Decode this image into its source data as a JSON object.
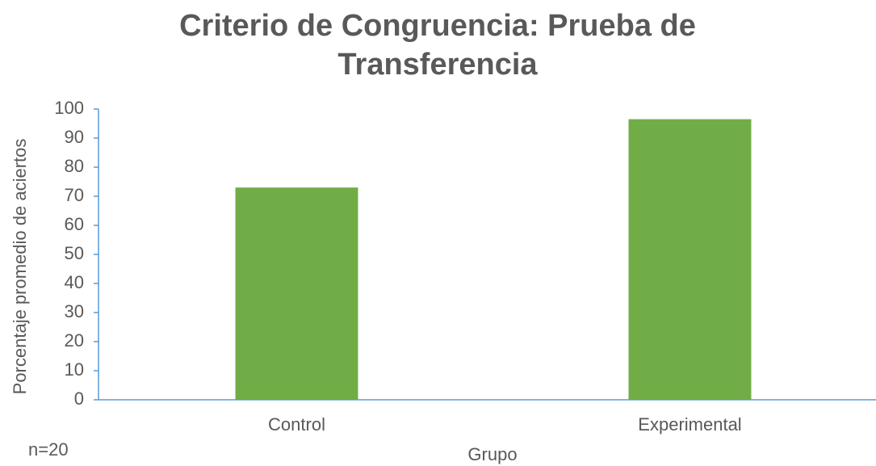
{
  "chart_data": {
    "type": "bar",
    "title": "Criterio de Congruencia: Prueba de Transferencia",
    "x_label": "Grupo",
    "y_label": "Porcentaje promedio de aciertos",
    "annotation": "n=20",
    "categories": [
      "Control",
      "Experimental"
    ],
    "values": [
      73,
      96.5
    ],
    "color": "#70ad47",
    "ylim": [
      0,
      100
    ],
    "yticks": [
      0,
      10,
      20,
      30,
      40,
      50,
      60,
      70,
      80,
      90,
      100
    ],
    "grid": false
  }
}
